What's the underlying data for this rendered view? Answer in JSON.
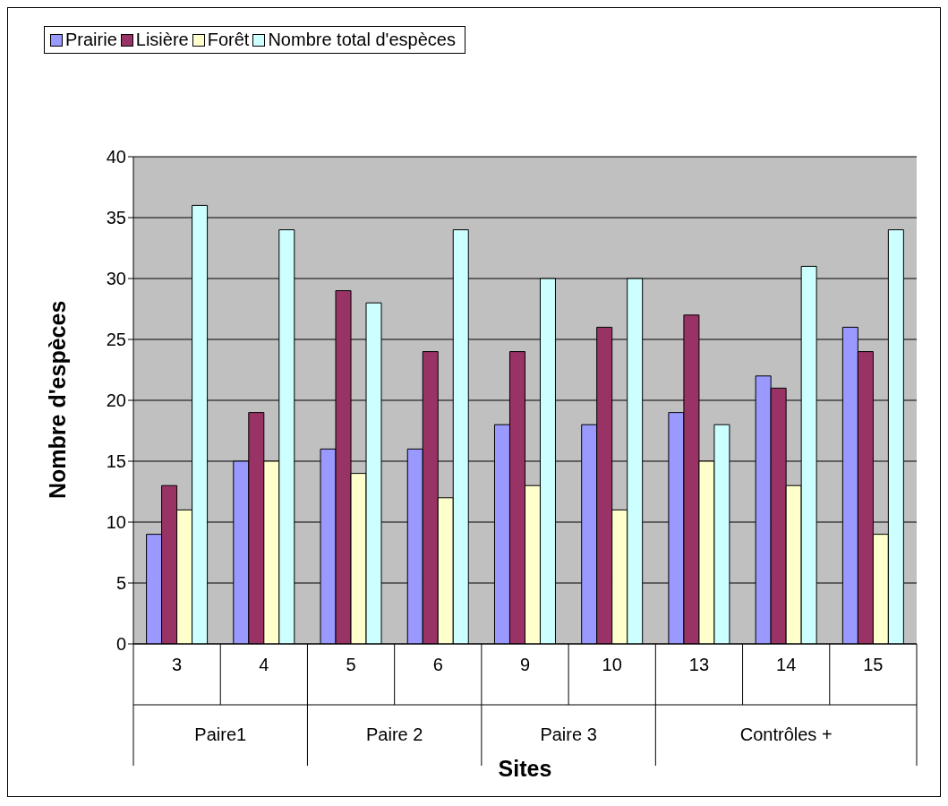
{
  "chart_data": {
    "type": "bar",
    "xlabel": "Sites",
    "ylabel": "Nombre d'espèces",
    "categories": [
      "3",
      "4",
      "5",
      "6",
      "9",
      "10",
      "13",
      "14",
      "15"
    ],
    "series": [
      {
        "name": "Prairie",
        "color": "#9999ff",
        "values": [
          9,
          15,
          16,
          16,
          18,
          18,
          19,
          22,
          26
        ]
      },
      {
        "name": "Lisière",
        "color": "#993366",
        "values": [
          13,
          19,
          29,
          24,
          24,
          26,
          27,
          21,
          24
        ]
      },
      {
        "name": "Forêt",
        "color": "#ffffcc",
        "values": [
          11,
          15,
          14,
          12,
          13,
          11,
          15,
          13,
          9
        ]
      },
      {
        "name": "Nombre total d'espèces",
        "color": "#ccffff",
        "values": [
          36,
          34,
          28,
          34,
          30,
          30,
          18,
          31,
          34
        ]
      }
    ],
    "annotations": [
      "Paire1",
      "Paire 2",
      "Paire 3",
      "Contrôles +"
    ],
    "ylim": [
      0,
      40
    ],
    "yticks": [
      0,
      5,
      10,
      15,
      20,
      25,
      30,
      35,
      40
    ],
    "grid": "y",
    "legend": "top"
  }
}
